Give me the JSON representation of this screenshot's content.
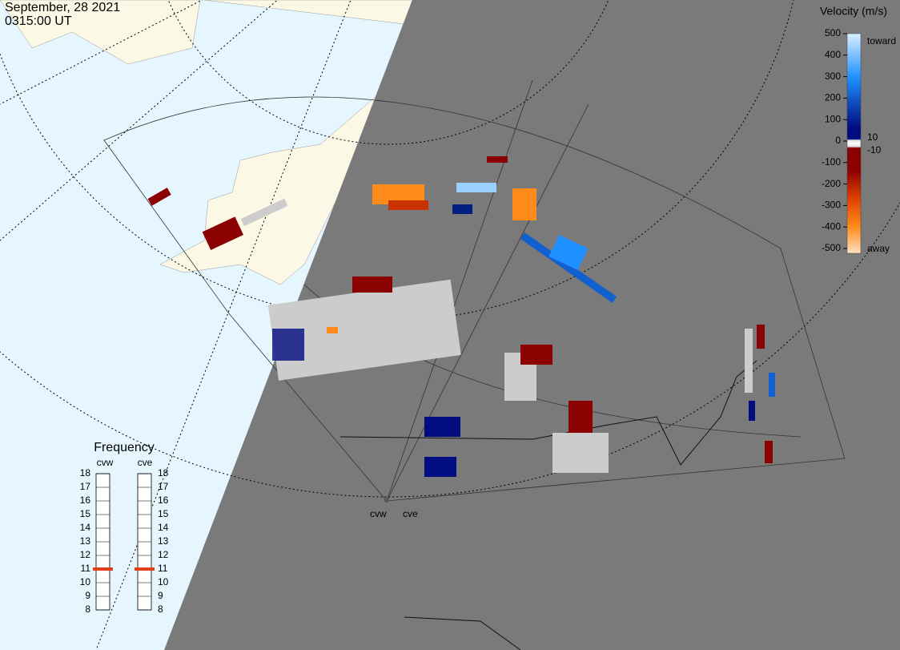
{
  "header": {
    "date": "September, 28 2021",
    "time": "0315:00 UT"
  },
  "colorbar": {
    "title": "Velocity (m/s)",
    "ticks": [
      500,
      400,
      300,
      200,
      100,
      0,
      -100,
      -200,
      -300,
      -400,
      -500
    ],
    "inner_ticks": [
      10,
      -10
    ],
    "toward": "toward",
    "away": "away"
  },
  "frequency": {
    "title": "Frequency",
    "ticks": [
      8,
      9,
      10,
      11,
      12,
      13,
      14,
      15,
      16,
      17,
      18
    ],
    "radars": [
      {
        "name": "cvw",
        "value": 11
      },
      {
        "name": "cve",
        "value": 11
      }
    ]
  },
  "radar_labels": [
    "cvw",
    "cve"
  ]
}
